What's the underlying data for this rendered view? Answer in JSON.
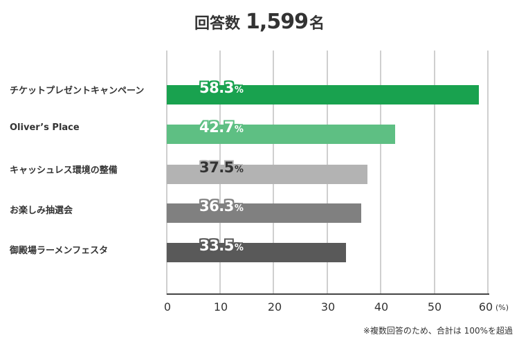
{
  "header": {
    "label": "回答数",
    "count": "1,599",
    "unit": "名"
  },
  "chart_data": {
    "type": "bar",
    "orientation": "horizontal",
    "title": "回答数 1,599名",
    "categories": [
      "チケットプレゼントキャンペーン",
      "Oliver’s Place",
      "キャッシュレス環境の整備",
      "お楽しみ抽選会",
      "御殿場ラーメンフェスタ"
    ],
    "values": [
      58.3,
      42.7,
      37.5,
      36.3,
      33.5
    ],
    "value_labels": [
      "58.3",
      "42.7",
      "37.5",
      "36.3",
      "33.5"
    ],
    "value_suffix": "%",
    "bar_colors": [
      "#19a24f",
      "#5ebf83",
      "#b3b3b3",
      "#808080",
      "#595959"
    ],
    "label_colors": [
      "#ffffff",
      "#ffffff",
      "#333333",
      "#ffffff",
      "#ffffff"
    ],
    "label_outline_colors": [
      "#19a24f",
      "#5ebf83",
      "#b3b3b3",
      "#808080",
      "#595959"
    ],
    "xlabel": "(%)",
    "ylabel": "",
    "xlim": [
      0,
      60
    ],
    "xticks": [
      "0",
      "10",
      "20",
      "30",
      "40",
      "50",
      "60"
    ],
    "grid": true,
    "legend": null,
    "footnote": "※複数回答のため、合計は 100%を超過"
  }
}
